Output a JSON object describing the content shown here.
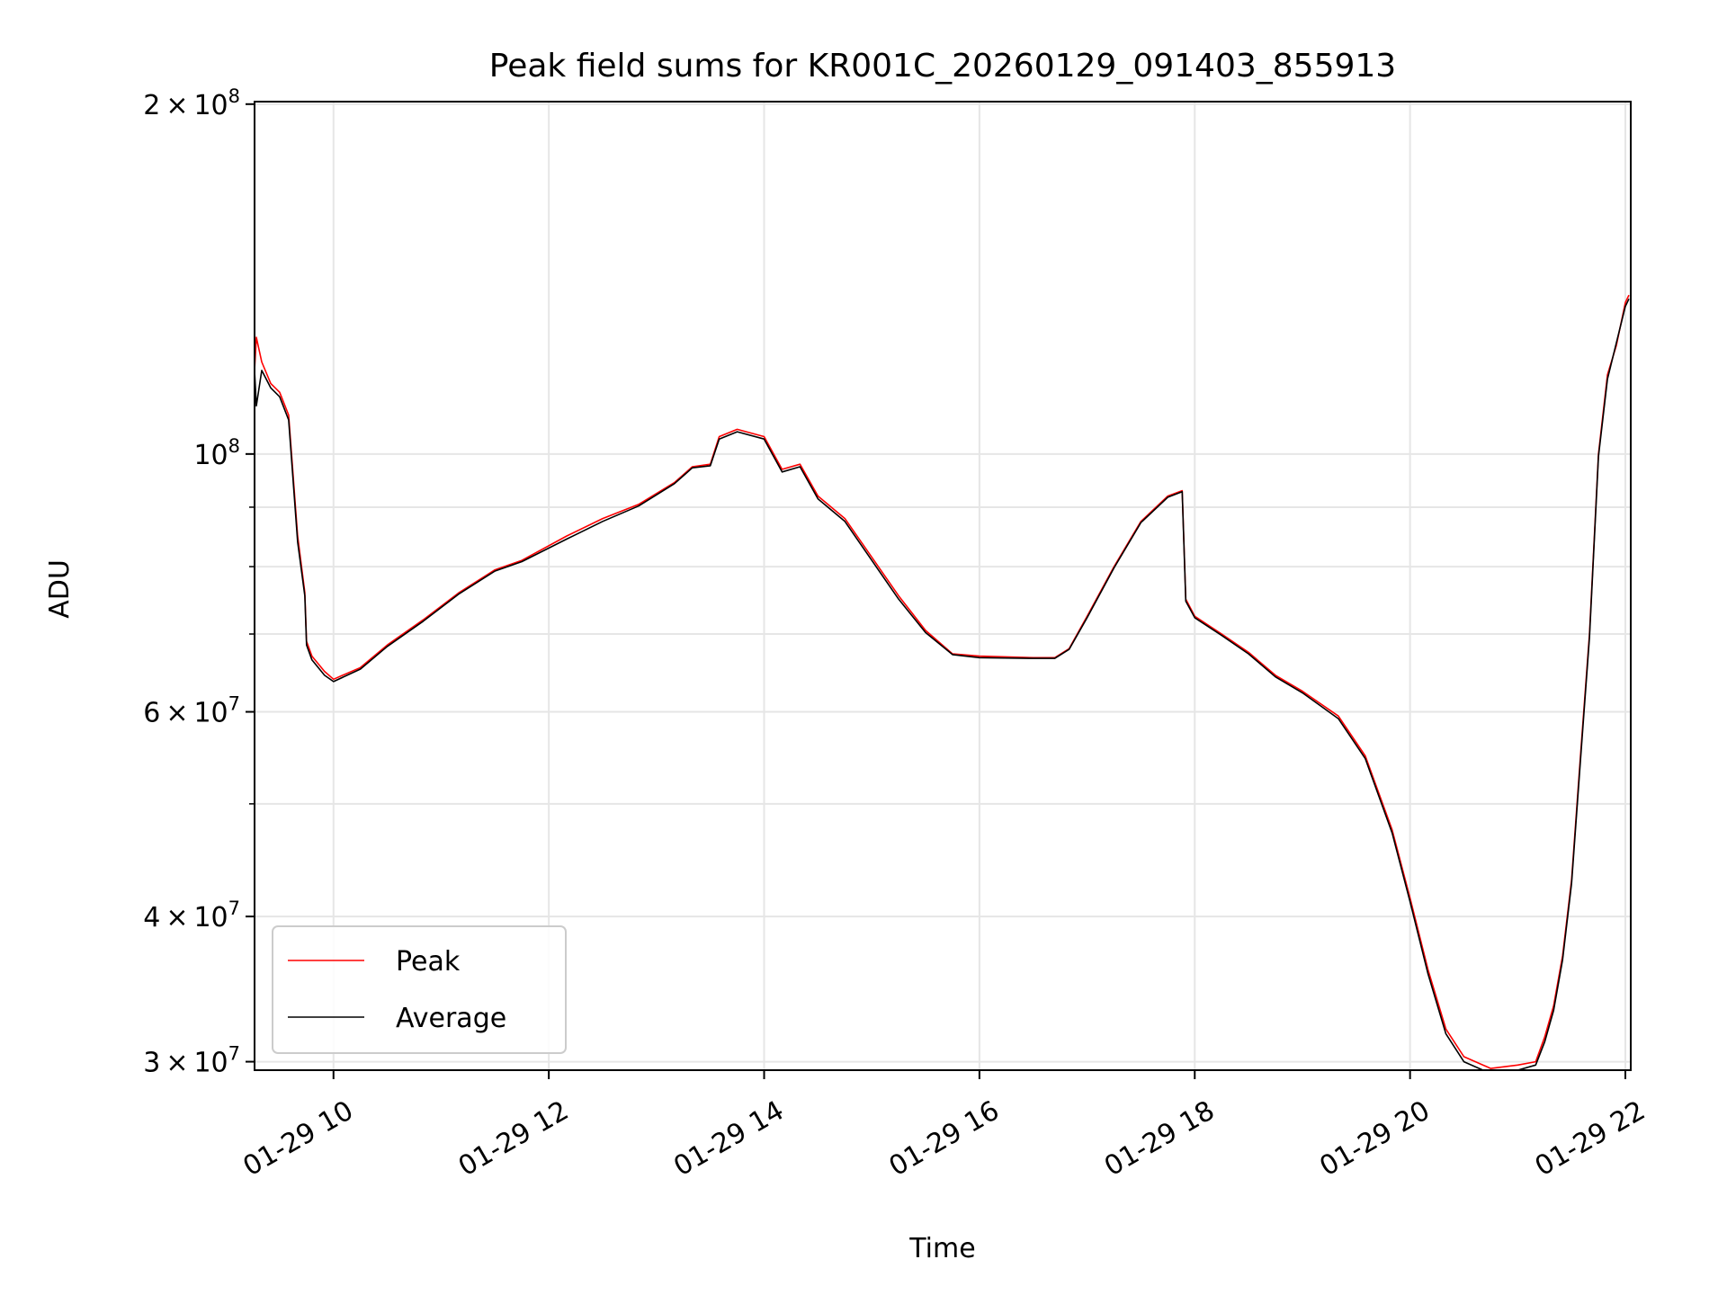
{
  "chart_data": {
    "type": "line",
    "title": "Peak field sums for KR001C_20260129_091403_855913",
    "xlabel": "Time",
    "ylabel": "ADU",
    "x_unit": "datetime",
    "x_range": [
      "2026-01-29 09:16",
      "2026-01-29 22:03"
    ],
    "ylim": [
      29500000,
      201000000
    ],
    "yscale": "log",
    "grid": true,
    "legend_position": "lower-left",
    "x_ticks": [
      {
        "value": "2026-01-29 10:00",
        "label": "01-29 10"
      },
      {
        "value": "2026-01-29 12:00",
        "label": "01-29 12"
      },
      {
        "value": "2026-01-29 14:00",
        "label": "01-29 14"
      },
      {
        "value": "2026-01-29 16:00",
        "label": "01-29 16"
      },
      {
        "value": "2026-01-29 18:00",
        "label": "01-29 18"
      },
      {
        "value": "2026-01-29 20:00",
        "label": "01-29 20"
      },
      {
        "value": "2026-01-29 22:00",
        "label": "01-29 22"
      }
    ],
    "y_ticks": [
      {
        "value": 30000000,
        "mant": "3",
        "exp": "7"
      },
      {
        "value": 40000000,
        "mant": "4",
        "exp": "7"
      },
      {
        "value": 60000000,
        "mant": "6",
        "exp": "7"
      },
      {
        "value": 100000000,
        "mant": "",
        "exp": "8"
      },
      {
        "value": 200000000,
        "mant": "2",
        "exp": "8"
      }
    ],
    "y_minor_ticks": [
      50000000,
      70000000,
      80000000,
      90000000
    ],
    "series": [
      {
        "name": "Peak",
        "color": "#ff0000",
        "x": [
          "2026-01-29 09:16",
          "2026-01-29 09:17",
          "2026-01-29 09:20",
          "2026-01-29 09:25",
          "2026-01-29 09:30",
          "2026-01-29 09:35",
          "2026-01-29 09:40",
          "2026-01-29 09:44",
          "2026-01-29 09:45",
          "2026-01-29 09:48",
          "2026-01-29 09:55",
          "2026-01-29 10:00",
          "2026-01-29 10:15",
          "2026-01-29 10:30",
          "2026-01-29 10:50",
          "2026-01-29 11:10",
          "2026-01-29 11:30",
          "2026-01-29 11:45",
          "2026-01-29 12:10",
          "2026-01-29 12:30",
          "2026-01-29 12:50",
          "2026-01-29 13:10",
          "2026-01-29 13:20",
          "2026-01-29 13:30",
          "2026-01-29 13:35",
          "2026-01-29 13:45",
          "2026-01-29 14:00",
          "2026-01-29 14:10",
          "2026-01-29 14:20",
          "2026-01-29 14:30",
          "2026-01-29 14:45",
          "2026-01-29 15:00",
          "2026-01-29 15:15",
          "2026-01-29 15:30",
          "2026-01-29 15:45",
          "2026-01-29 16:00",
          "2026-01-29 16:30",
          "2026-01-29 16:42",
          "2026-01-29 16:50",
          "2026-01-29 17:00",
          "2026-01-29 17:15",
          "2026-01-29 17:30",
          "2026-01-29 17:45",
          "2026-01-29 17:53",
          "2026-01-29 17:55",
          "2026-01-29 18:00",
          "2026-01-29 18:15",
          "2026-01-29 18:30",
          "2026-01-29 18:45",
          "2026-01-29 19:00",
          "2026-01-29 19:20",
          "2026-01-29 19:35",
          "2026-01-29 19:50",
          "2026-01-29 20:00",
          "2026-01-29 20:10",
          "2026-01-29 20:20",
          "2026-01-29 20:30",
          "2026-01-29 20:45",
          "2026-01-29 21:00",
          "2026-01-29 21:10",
          "2026-01-29 21:15",
          "2026-01-29 21:20",
          "2026-01-29 21:25",
          "2026-01-29 21:30",
          "2026-01-29 21:35",
          "2026-01-29 21:40",
          "2026-01-29 21:45",
          "2026-01-29 21:50",
          "2026-01-29 21:55",
          "2026-01-29 22:00",
          "2026-01-29 22:02"
        ],
        "y": [
          118000000,
          126000000,
          120000000,
          115000000,
          113000000,
          108000000,
          85000000,
          76000000,
          69000000,
          67000000,
          65000000,
          64000000,
          65500000,
          68500000,
          72000000,
          76000000,
          79500000,
          81000000,
          85000000,
          88000000,
          90500000,
          94500000,
          97500000,
          98000000,
          103500000,
          105000000,
          103500000,
          97000000,
          98000000,
          92000000,
          88000000,
          81500000,
          75500000,
          70500000,
          67300000,
          67000000,
          66800000,
          66800000,
          68000000,
          72500000,
          80000000,
          87500000,
          92000000,
          93000000,
          75000000,
          72500000,
          70000000,
          67500000,
          64500000,
          62500000,
          59500000,
          55000000,
          47500000,
          41500000,
          36000000,
          32000000,
          30300000,
          29600000,
          29800000,
          30000000,
          31500000,
          33500000,
          37000000,
          43000000,
          55000000,
          70000000,
          100000000,
          117000000,
          124000000,
          135000000,
          137000000
        ]
      },
      {
        "name": "Average",
        "color": "#000000",
        "x": [
          "2026-01-29 09:16",
          "2026-01-29 09:17",
          "2026-01-29 09:20",
          "2026-01-29 09:25",
          "2026-01-29 09:30",
          "2026-01-29 09:35",
          "2026-01-29 09:40",
          "2026-01-29 09:44",
          "2026-01-29 09:45",
          "2026-01-29 09:48",
          "2026-01-29 09:55",
          "2026-01-29 10:00",
          "2026-01-29 10:15",
          "2026-01-29 10:30",
          "2026-01-29 10:50",
          "2026-01-29 11:10",
          "2026-01-29 11:30",
          "2026-01-29 11:45",
          "2026-01-29 12:10",
          "2026-01-29 12:30",
          "2026-01-29 12:50",
          "2026-01-29 13:10",
          "2026-01-29 13:20",
          "2026-01-29 13:30",
          "2026-01-29 13:35",
          "2026-01-29 13:45",
          "2026-01-29 14:00",
          "2026-01-29 14:10",
          "2026-01-29 14:20",
          "2026-01-29 14:30",
          "2026-01-29 14:45",
          "2026-01-29 15:00",
          "2026-01-29 15:15",
          "2026-01-29 15:30",
          "2026-01-29 15:45",
          "2026-01-29 16:00",
          "2026-01-29 16:30",
          "2026-01-29 16:42",
          "2026-01-29 16:50",
          "2026-01-29 17:00",
          "2026-01-29 17:15",
          "2026-01-29 17:30",
          "2026-01-29 17:45",
          "2026-01-29 17:53",
          "2026-01-29 17:55",
          "2026-01-29 18:00",
          "2026-01-29 18:15",
          "2026-01-29 18:30",
          "2026-01-29 18:45",
          "2026-01-29 19:00",
          "2026-01-29 19:20",
          "2026-01-29 19:35",
          "2026-01-29 19:50",
          "2026-01-29 20:00",
          "2026-01-29 20:10",
          "2026-01-29 20:20",
          "2026-01-29 20:30",
          "2026-01-29 20:45",
          "2026-01-29 21:00",
          "2026-01-29 21:10",
          "2026-01-29 21:15",
          "2026-01-29 21:20",
          "2026-01-29 21:25",
          "2026-01-29 21:30",
          "2026-01-29 21:35",
          "2026-01-29 21:40",
          "2026-01-29 21:45",
          "2026-01-29 21:50",
          "2026-01-29 22:00",
          "2026-01-29 22:02"
        ],
        "y": [
          118000000,
          110000000,
          118000000,
          114000000,
          112000000,
          107000000,
          84000000,
          75500000,
          68500000,
          66500000,
          64500000,
          63700000,
          65300000,
          68300000,
          71800000,
          75800000,
          79300000,
          80800000,
          84500000,
          87500000,
          90200000,
          94300000,
          97300000,
          97700000,
          103000000,
          104500000,
          103000000,
          96500000,
          97500000,
          91500000,
          87500000,
          81000000,
          75000000,
          70200000,
          67200000,
          66800000,
          66700000,
          66700000,
          67900000,
          72300000,
          79800000,
          87300000,
          91800000,
          92800000,
          74700000,
          72300000,
          69800000,
          67300000,
          64300000,
          62300000,
          59200000,
          54700000,
          47200000,
          41200000,
          35700000,
          31700000,
          30000000,
          29300000,
          29500000,
          29800000,
          31200000,
          33200000,
          36700000,
          42700000,
          54500000,
          69500000,
          99500000,
          116000000,
          134000000,
          136000000
        ]
      }
    ]
  }
}
